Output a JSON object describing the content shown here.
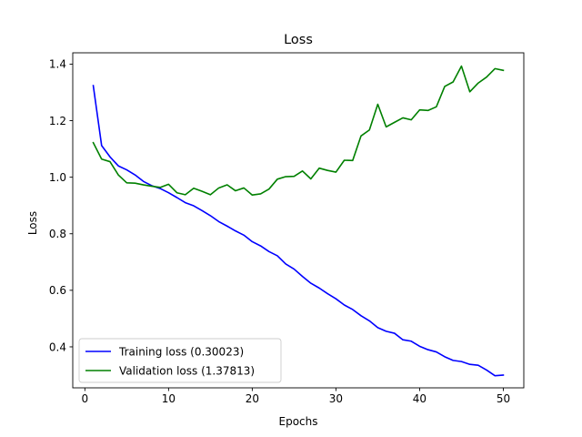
{
  "chart_data": {
    "type": "line",
    "title": "Loss",
    "xlabel": "Epochs",
    "ylabel": "Loss",
    "xlim": [
      -1.45,
      52.45
    ],
    "ylim": [
      0.255,
      1.44
    ],
    "xticks": [
      0,
      10,
      20,
      30,
      40,
      50
    ],
    "yticks": [
      0.4,
      0.6,
      0.8,
      1.0,
      1.2,
      1.4
    ],
    "ytick_labels": [
      "0.4",
      "0.6",
      "0.8",
      "1.0",
      "1.2",
      "1.4"
    ],
    "grid": false,
    "legend": {
      "placement": "lower-left"
    },
    "x": [
      1,
      2,
      3,
      4,
      5,
      6,
      7,
      8,
      9,
      10,
      11,
      12,
      13,
      14,
      15,
      16,
      17,
      18,
      19,
      20,
      21,
      22,
      23,
      24,
      25,
      26,
      27,
      28,
      29,
      30,
      31,
      32,
      33,
      34,
      35,
      36,
      37,
      38,
      39,
      40,
      41,
      42,
      43,
      44,
      45,
      46,
      47,
      48,
      49,
      50
    ],
    "series": [
      {
        "name": "Training loss (0.30023)",
        "color": "#0000ff",
        "values": [
          1.324,
          1.112,
          1.072,
          1.04,
          1.026,
          1.008,
          0.985,
          0.97,
          0.96,
          0.945,
          0.928,
          0.91,
          0.899,
          0.882,
          0.864,
          0.843,
          0.827,
          0.81,
          0.795,
          0.772,
          0.757,
          0.737,
          0.722,
          0.693,
          0.675,
          0.649,
          0.625,
          0.608,
          0.588,
          0.57,
          0.548,
          0.532,
          0.51,
          0.492,
          0.468,
          0.455,
          0.448,
          0.425,
          0.42,
          0.402,
          0.39,
          0.382,
          0.365,
          0.352,
          0.348,
          0.338,
          0.335,
          0.318,
          0.298,
          0.3
        ]
      },
      {
        "name": "Validation loss (1.37813)",
        "color": "#008000",
        "values": [
          1.122,
          1.064,
          1.055,
          1.008,
          0.98,
          0.979,
          0.973,
          0.968,
          0.964,
          0.975,
          0.945,
          0.938,
          0.961,
          0.95,
          0.938,
          0.962,
          0.973,
          0.952,
          0.962,
          0.937,
          0.941,
          0.958,
          0.993,
          1.002,
          1.003,
          1.022,
          0.994,
          1.032,
          1.024,
          1.018,
          1.06,
          1.059,
          1.146,
          1.167,
          1.258,
          1.178,
          1.194,
          1.21,
          1.203,
          1.238,
          1.236,
          1.249,
          1.321,
          1.337,
          1.393,
          1.302,
          1.333,
          1.354,
          1.384,
          1.378
        ]
      }
    ]
  }
}
